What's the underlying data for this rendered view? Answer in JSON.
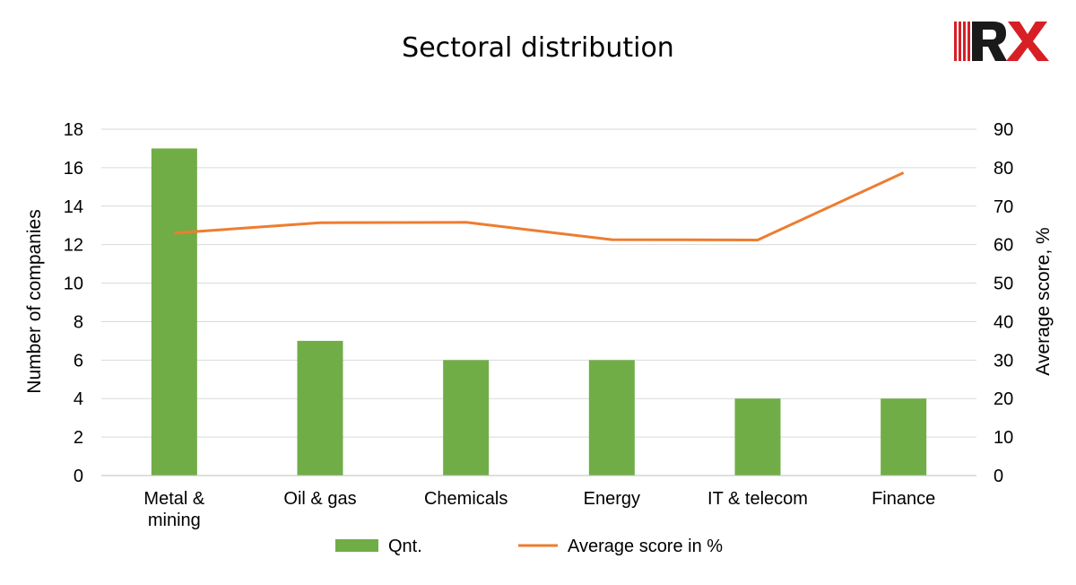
{
  "logo": {
    "text": "RX",
    "color": "#d71f26"
  },
  "chart_data": {
    "type": "bar",
    "title": "Sectoral distribution",
    "categories": [
      [
        "Metal &",
        "mining"
      ],
      [
        "Oil & gas"
      ],
      [
        "Chemicals"
      ],
      [
        "Energy"
      ],
      [
        "IT & telecom"
      ],
      [
        "Finance"
      ]
    ],
    "series": [
      {
        "name": "Qnt.",
        "type": "bar",
        "axis": "left",
        "color": "#70ad47",
        "values": [
          17,
          7,
          6,
          6,
          4,
          4
        ]
      },
      {
        "name": "Average score in %",
        "type": "line",
        "axis": "right",
        "color": "#ed7d31",
        "values": [
          63,
          65.7,
          65.8,
          61.3,
          61.2,
          78.7
        ]
      }
    ],
    "ylabel": "Number of companies",
    "y2label": "Average score, %",
    "ylim": [
      0,
      18
    ],
    "y2lim": [
      0,
      90
    ],
    "yticks": [
      "0",
      "2",
      "4",
      "6",
      "8",
      "10",
      "12",
      "14",
      "16",
      "18"
    ],
    "y2ticks": [
      "0",
      "10",
      "20",
      "30",
      "40",
      "50",
      "60",
      "70",
      "80",
      "90"
    ],
    "grid": true,
    "legend": "bottom"
  }
}
